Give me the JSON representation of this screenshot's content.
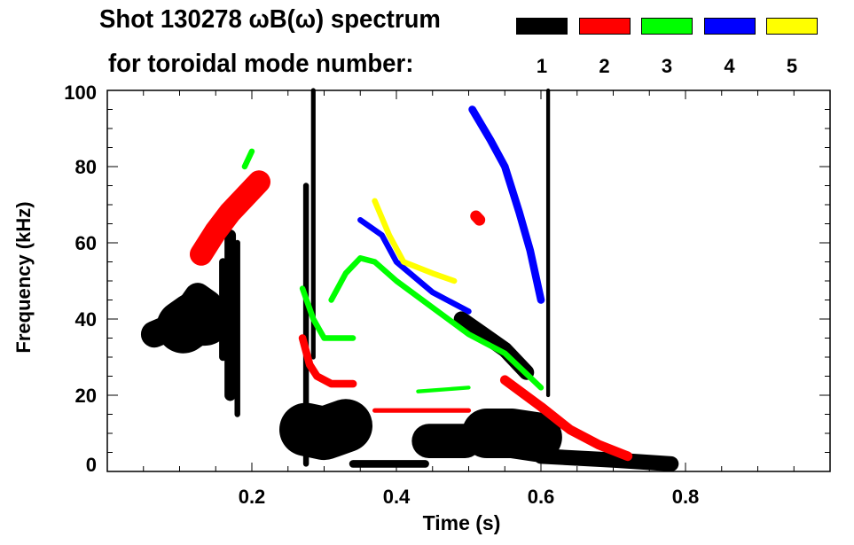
{
  "title_line1": "Shot 130278 ωB(ω) spectrum",
  "title_line2": "for toroidal mode number:",
  "chart_data": {
    "type": "heatmap",
    "title": "Shot 130278 ωB(ω) spectrum for toroidal mode number",
    "xlabel": "Time (s)",
    "ylabel": "Frequency (kHz)",
    "xlim": [
      0,
      1.0
    ],
    "ylim": [
      0,
      100
    ],
    "xticks": [
      0.2,
      0.4,
      0.6,
      0.8
    ],
    "xtick_labels": [
      "0.2",
      "0.4",
      "0.6",
      "0.8"
    ],
    "yticks": [
      0,
      20,
      40,
      60,
      80,
      100
    ],
    "ytick_labels": [
      "0",
      "20",
      "40",
      "60",
      "80",
      "100"
    ],
    "legend": [
      {
        "mode": "1",
        "color": "#000000"
      },
      {
        "mode": "2",
        "color": "#ff0000"
      },
      {
        "mode": "3",
        "color": "#00ff00"
      },
      {
        "mode": "4",
        "color": "#0000ff"
      },
      {
        "mode": "5",
        "color": "#ffff00"
      }
    ],
    "features": [
      {
        "mode": 1,
        "width_khz": 7,
        "points": [
          [
            0.065,
            36
          ],
          [
            0.09,
            38
          ],
          [
            0.11,
            42
          ],
          [
            0.125,
            46
          ],
          [
            0.14,
            44
          ]
        ]
      },
      {
        "mode": 1,
        "width_khz": 14,
        "points": [
          [
            0.105,
            38
          ],
          [
            0.12,
            40
          ],
          [
            0.135,
            40
          ]
        ]
      },
      {
        "mode": 1,
        "width_khz": 3,
        "points": [
          [
            0.17,
            62
          ],
          [
            0.17,
            20
          ]
        ]
      },
      {
        "mode": 1,
        "width_khz": 2,
        "points": [
          [
            0.16,
            55
          ],
          [
            0.16,
            30
          ]
        ]
      },
      {
        "mode": 1,
        "width_khz": 1.5,
        "points": [
          [
            0.18,
            60
          ],
          [
            0.18,
            15
          ]
        ]
      },
      {
        "mode": 1,
        "width_khz": 14,
        "points": [
          [
            0.275,
            11
          ],
          [
            0.3,
            10
          ],
          [
            0.33,
            12
          ]
        ]
      },
      {
        "mode": 1,
        "width_khz": 1.5,
        "points": [
          [
            0.275,
            75
          ],
          [
            0.275,
            2
          ]
        ]
      },
      {
        "mode": 1,
        "width_khz": 1.2,
        "points": [
          [
            0.285,
            100
          ],
          [
            0.285,
            30
          ]
        ]
      },
      {
        "mode": 1,
        "width_khz": 2,
        "points": [
          [
            0.34,
            2
          ],
          [
            0.44,
            2
          ]
        ]
      },
      {
        "mode": 1,
        "width_khz": 9,
        "points": [
          [
            0.445,
            8
          ],
          [
            0.47,
            8
          ],
          [
            0.495,
            8
          ]
        ]
      },
      {
        "mode": 1,
        "width_khz": 13,
        "points": [
          [
            0.525,
            10
          ],
          [
            0.56,
            10
          ],
          [
            0.595,
            9
          ]
        ]
      },
      {
        "mode": 1,
        "width_khz": 4,
        "points": [
          [
            0.6,
            4
          ],
          [
            0.7,
            3
          ],
          [
            0.78,
            2
          ]
        ]
      },
      {
        "mode": 1,
        "width_khz": 4,
        "points": [
          [
            0.49,
            40
          ],
          [
            0.52,
            36
          ],
          [
            0.55,
            32
          ],
          [
            0.58,
            26
          ]
        ]
      },
      {
        "mode": 1,
        "width_khz": 1,
        "points": [
          [
            0.61,
            100
          ],
          [
            0.61,
            20
          ]
        ]
      },
      {
        "mode": 2,
        "width_khz": 6,
        "points": [
          [
            0.13,
            57
          ],
          [
            0.15,
            63
          ],
          [
            0.17,
            68
          ],
          [
            0.19,
            72
          ],
          [
            0.21,
            76
          ]
        ]
      },
      {
        "mode": 2,
        "width_khz": 2,
        "points": [
          [
            0.27,
            35
          ],
          [
            0.28,
            28
          ],
          [
            0.29,
            25
          ],
          [
            0.31,
            23
          ],
          [
            0.34,
            23
          ]
        ]
      },
      {
        "mode": 2,
        "width_khz": 1.2,
        "points": [
          [
            0.37,
            16
          ],
          [
            0.43,
            16
          ],
          [
            0.5,
            16
          ]
        ]
      },
      {
        "mode": 2,
        "width_khz": 2.5,
        "points": [
          [
            0.55,
            24
          ],
          [
            0.6,
            17
          ],
          [
            0.64,
            11
          ],
          [
            0.68,
            7
          ],
          [
            0.72,
            4
          ]
        ]
      },
      {
        "mode": 2,
        "width_khz": 3,
        "points": [
          [
            0.51,
            67
          ],
          [
            0.515,
            66
          ]
        ]
      },
      {
        "mode": 3,
        "width_khz": 1.5,
        "points": [
          [
            0.27,
            48
          ],
          [
            0.285,
            40
          ],
          [
            0.3,
            35
          ],
          [
            0.34,
            35
          ]
        ]
      },
      {
        "mode": 3,
        "width_khz": 1.5,
        "points": [
          [
            0.31,
            45
          ],
          [
            0.33,
            52
          ],
          [
            0.35,
            56
          ],
          [
            0.37,
            55
          ],
          [
            0.4,
            50
          ],
          [
            0.45,
            43
          ],
          [
            0.5,
            36
          ],
          [
            0.55,
            31
          ],
          [
            0.6,
            22
          ]
        ]
      },
      {
        "mode": 3,
        "width_khz": 1,
        "points": [
          [
            0.43,
            21
          ],
          [
            0.5,
            22
          ]
        ]
      },
      {
        "mode": 3,
        "width_khz": 1.5,
        "points": [
          [
            0.19,
            80
          ],
          [
            0.2,
            84
          ]
        ]
      },
      {
        "mode": 4,
        "width_khz": 1.5,
        "points": [
          [
            0.35,
            66
          ],
          [
            0.38,
            62
          ],
          [
            0.4,
            55
          ],
          [
            0.45,
            47
          ],
          [
            0.5,
            42
          ]
        ]
      },
      {
        "mode": 4,
        "width_khz": 2,
        "points": [
          [
            0.505,
            95
          ],
          [
            0.53,
            87
          ],
          [
            0.55,
            80
          ],
          [
            0.57,
            68
          ],
          [
            0.585,
            58
          ],
          [
            0.6,
            45
          ]
        ]
      },
      {
        "mode": 5,
        "width_khz": 1.5,
        "points": [
          [
            0.37,
            71
          ],
          [
            0.39,
            62
          ],
          [
            0.41,
            55
          ],
          [
            0.45,
            52
          ],
          [
            0.48,
            50
          ]
        ]
      }
    ]
  }
}
